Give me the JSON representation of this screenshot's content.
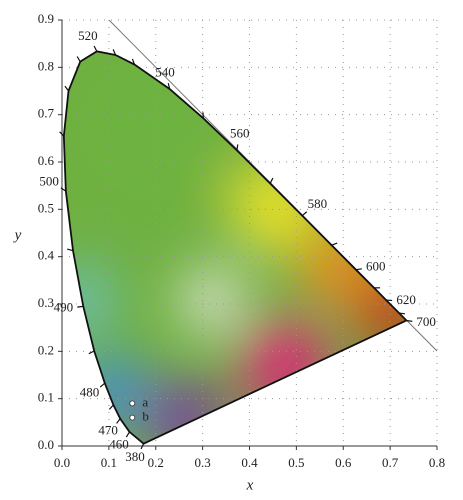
{
  "chart_data": {
    "type": "scatter",
    "x_label": "x",
    "y_label": "y",
    "xlim": [
      0,
      0.8
    ],
    "ylim": [
      0,
      0.9
    ],
    "xticks": [
      {
        "value": 0,
        "label": "0.0"
      },
      {
        "value": 0.1,
        "label": "0.1"
      },
      {
        "value": 0.2,
        "label": "0.2"
      },
      {
        "value": 0.3,
        "label": "0.3"
      },
      {
        "value": 0.4,
        "label": "0.4"
      },
      {
        "value": 0.5,
        "label": "0.5"
      },
      {
        "value": 0.6,
        "label": "0.6"
      },
      {
        "value": 0.7,
        "label": "0.7"
      },
      {
        "value": 0.8,
        "label": "0.8"
      }
    ],
    "yticks": [
      {
        "value": 0,
        "label": "0.0"
      },
      {
        "value": 0.1,
        "label": "0.1"
      },
      {
        "value": 0.2,
        "label": "0.2"
      },
      {
        "value": 0.3,
        "label": "0.3"
      },
      {
        "value": 0.4,
        "label": "0.4"
      },
      {
        "value": 0.5,
        "label": "0.5"
      },
      {
        "value": 0.6,
        "label": "0.6"
      },
      {
        "value": 0.7,
        "label": "0.7"
      },
      {
        "value": 0.8,
        "label": "0.8"
      },
      {
        "value": 0.9,
        "label": "0.9"
      }
    ],
    "grid": true,
    "spectral_locus": {
      "color": "#111111",
      "x": [
        0.1741,
        0.144,
        0.1241,
        0.1096,
        0.0913,
        0.0687,
        0.0454,
        0.0235,
        0.0082,
        0.0039,
        0.0139,
        0.0389,
        0.0743,
        0.1142,
        0.1547,
        0.2296,
        0.3016,
        0.3731,
        0.4441,
        0.5125,
        0.5752,
        0.627,
        0.6658,
        0.6915,
        0.719,
        0.7347
      ],
      "y": [
        0.005,
        0.0297,
        0.0578,
        0.0868,
        0.1327,
        0.2007,
        0.295,
        0.4127,
        0.5384,
        0.6548,
        0.7502,
        0.812,
        0.8338,
        0.8262,
        0.8059,
        0.7543,
        0.6923,
        0.6245,
        0.5547,
        0.4866,
        0.4242,
        0.3725,
        0.334,
        0.3083,
        0.2809,
        0.2653
      ],
      "labels": [
        "380",
        "460",
        "470",
        null,
        "480",
        null,
        "490",
        null,
        "500",
        null,
        null,
        null,
        "520",
        null,
        null,
        "540",
        null,
        "560",
        null,
        "580",
        null,
        "600",
        null,
        "620",
        null,
        "700"
      ]
    },
    "points": {
      "color": "#ffffff",
      "labels": [
        "a",
        "b"
      ],
      "x": [
        0.15,
        0.15
      ],
      "y": [
        0.09,
        0.06
      ]
    }
  }
}
